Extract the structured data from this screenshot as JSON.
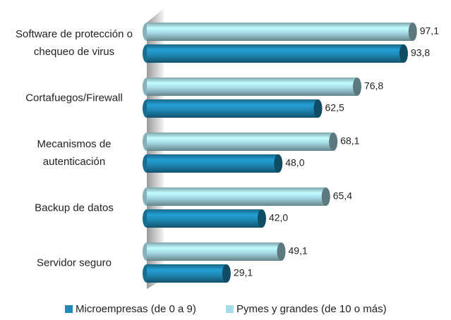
{
  "chart_data": {
    "type": "barh",
    "categories": [
      "Software de protección o chequeo de virus",
      "Cortafuegos/Firewall",
      "Mecanismos de autenticación",
      "Backup de datos",
      "Servidor seguro"
    ],
    "series": [
      {
        "name": "Microempresas (de 0 a 9)",
        "color": "#1f8ab8",
        "values": [
          93.8,
          62.5,
          48.0,
          42.0,
          29.1
        ],
        "value_labels": [
          "93,8",
          "62,5",
          "48,0",
          "42,0",
          "29,1"
        ]
      },
      {
        "name": "Pymes y grandes (de 10 o más)",
        "color": "#a8dce8",
        "values": [
          97.1,
          76.8,
          68.1,
          65.4,
          49.1
        ],
        "value_labels": [
          "97,1",
          "76,8",
          "68,1",
          "65,4",
          "49,1"
        ]
      }
    ],
    "xlim": [
      0,
      100
    ],
    "legend": "bottom"
  }
}
